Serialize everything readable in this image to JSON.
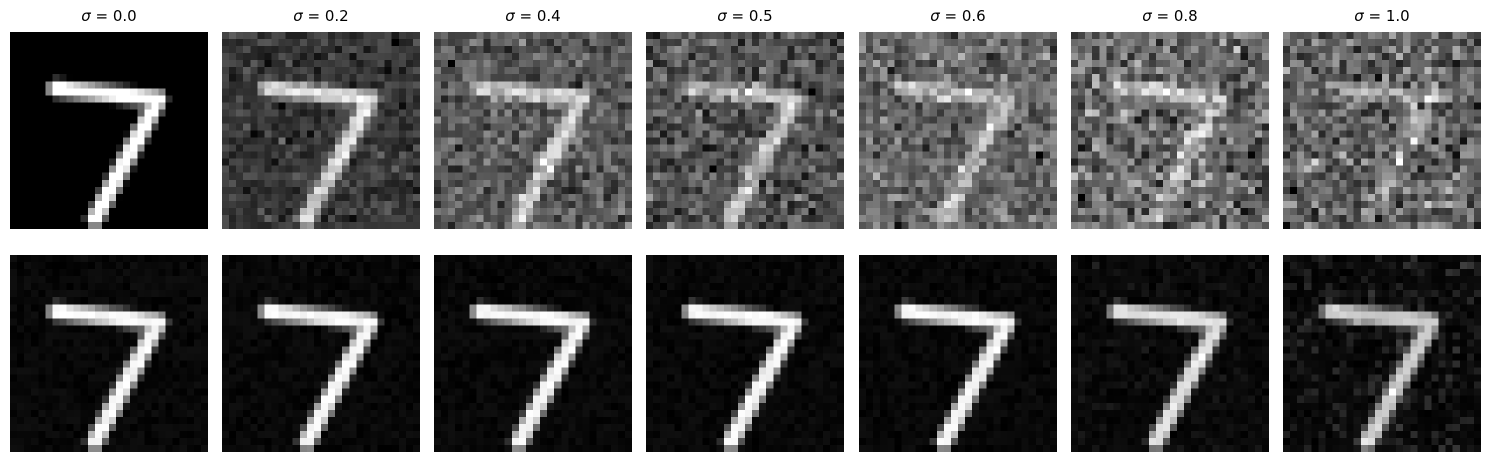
{
  "figure": {
    "digit": "7",
    "columns": [
      {
        "symbol": "σ",
        "label": "= 0.0",
        "sigma": 0.0
      },
      {
        "symbol": "σ",
        "label": "= 0.2",
        "sigma": 0.2
      },
      {
        "symbol": "σ",
        "label": "= 0.4",
        "sigma": 0.4
      },
      {
        "symbol": "σ",
        "label": "= 0.5",
        "sigma": 0.5
      },
      {
        "symbol": "σ",
        "label": "= 0.6",
        "sigma": 0.6
      },
      {
        "symbol": "σ",
        "label": "= 0.8",
        "sigma": 0.8
      },
      {
        "symbol": "σ",
        "label": "= 1.0",
        "sigma": 1.0
      }
    ],
    "rows": [
      "noisy-input",
      "reconstruction"
    ],
    "colormap": "gray",
    "background": "#ffffff"
  }
}
